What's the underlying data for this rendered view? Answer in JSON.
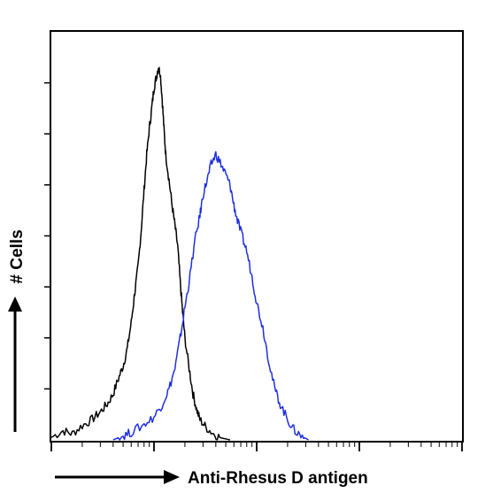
{
  "chart_data": {
    "type": "line",
    "title": "",
    "xlabel": "Anti-Rhesus D antigen",
    "ylabel": "# Cells",
    "x_scale": "log",
    "xlim": [
      1,
      10000
    ],
    "ylim": [
      0,
      8
    ],
    "grid": false,
    "legend": "none",
    "series": [
      {
        "color": "#000000",
        "points": [
          [
            1,
            0.05
          ],
          [
            1.3,
            0.18
          ],
          [
            1.6,
            0.12
          ],
          [
            2,
            0.28
          ],
          [
            2.5,
            0.4
          ],
          [
            3,
            0.55
          ],
          [
            3.5,
            0.7
          ],
          [
            4,
            0.9
          ],
          [
            4.5,
            1.2
          ],
          [
            5,
            1.45
          ],
          [
            5.5,
            1.8
          ],
          [
            6,
            2.3
          ],
          [
            6.5,
            2.9
          ],
          [
            7,
            3.4
          ],
          [
            7.5,
            4.1
          ],
          [
            8,
            4.9
          ],
          [
            8.5,
            5.6
          ],
          [
            9,
            6.1
          ],
          [
            9.5,
            6.5
          ],
          [
            10,
            6.9
          ],
          [
            10.5,
            7.1
          ],
          [
            11,
            7.3
          ],
          [
            11.5,
            7.2
          ],
          [
            12,
            6.7
          ],
          [
            12.5,
            6.1
          ],
          [
            13,
            5.6
          ],
          [
            14,
            5.1
          ],
          [
            15,
            4.6
          ],
          [
            16,
            4.2
          ],
          [
            17,
            3.8
          ],
          [
            18,
            3.1
          ],
          [
            19,
            2.5
          ],
          [
            20,
            2.0
          ],
          [
            22,
            1.4
          ],
          [
            24,
            0.9
          ],
          [
            26,
            0.6
          ],
          [
            28,
            0.4
          ],
          [
            32,
            0.25
          ],
          [
            38,
            0.12
          ],
          [
            45,
            0.04
          ],
          [
            55,
            0.0
          ]
        ]
      },
      {
        "color": "#1f2fe0",
        "points": [
          [
            4,
            0.0
          ],
          [
            5,
            0.08
          ],
          [
            6,
            0.15
          ],
          [
            8,
            0.3
          ],
          [
            10,
            0.45
          ],
          [
            12,
            0.7
          ],
          [
            14,
            1.0
          ],
          [
            16,
            1.4
          ],
          [
            18,
            2.0
          ],
          [
            20,
            2.6
          ],
          [
            22,
            3.1
          ],
          [
            25,
            3.9
          ],
          [
            28,
            4.4
          ],
          [
            30,
            4.8
          ],
          [
            33,
            5.1
          ],
          [
            36,
            5.4
          ],
          [
            40,
            5.6
          ],
          [
            45,
            5.4
          ],
          [
            50,
            5.2
          ],
          [
            55,
            5.0
          ],
          [
            60,
            4.6
          ],
          [
            65,
            4.3
          ],
          [
            72,
            4.0
          ],
          [
            80,
            3.7
          ],
          [
            90,
            3.2
          ],
          [
            100,
            2.7
          ],
          [
            115,
            2.2
          ],
          [
            130,
            1.6
          ],
          [
            150,
            1.0
          ],
          [
            170,
            0.7
          ],
          [
            200,
            0.4
          ],
          [
            230,
            0.2
          ],
          [
            270,
            0.08
          ],
          [
            320,
            0.0
          ]
        ]
      }
    ]
  }
}
